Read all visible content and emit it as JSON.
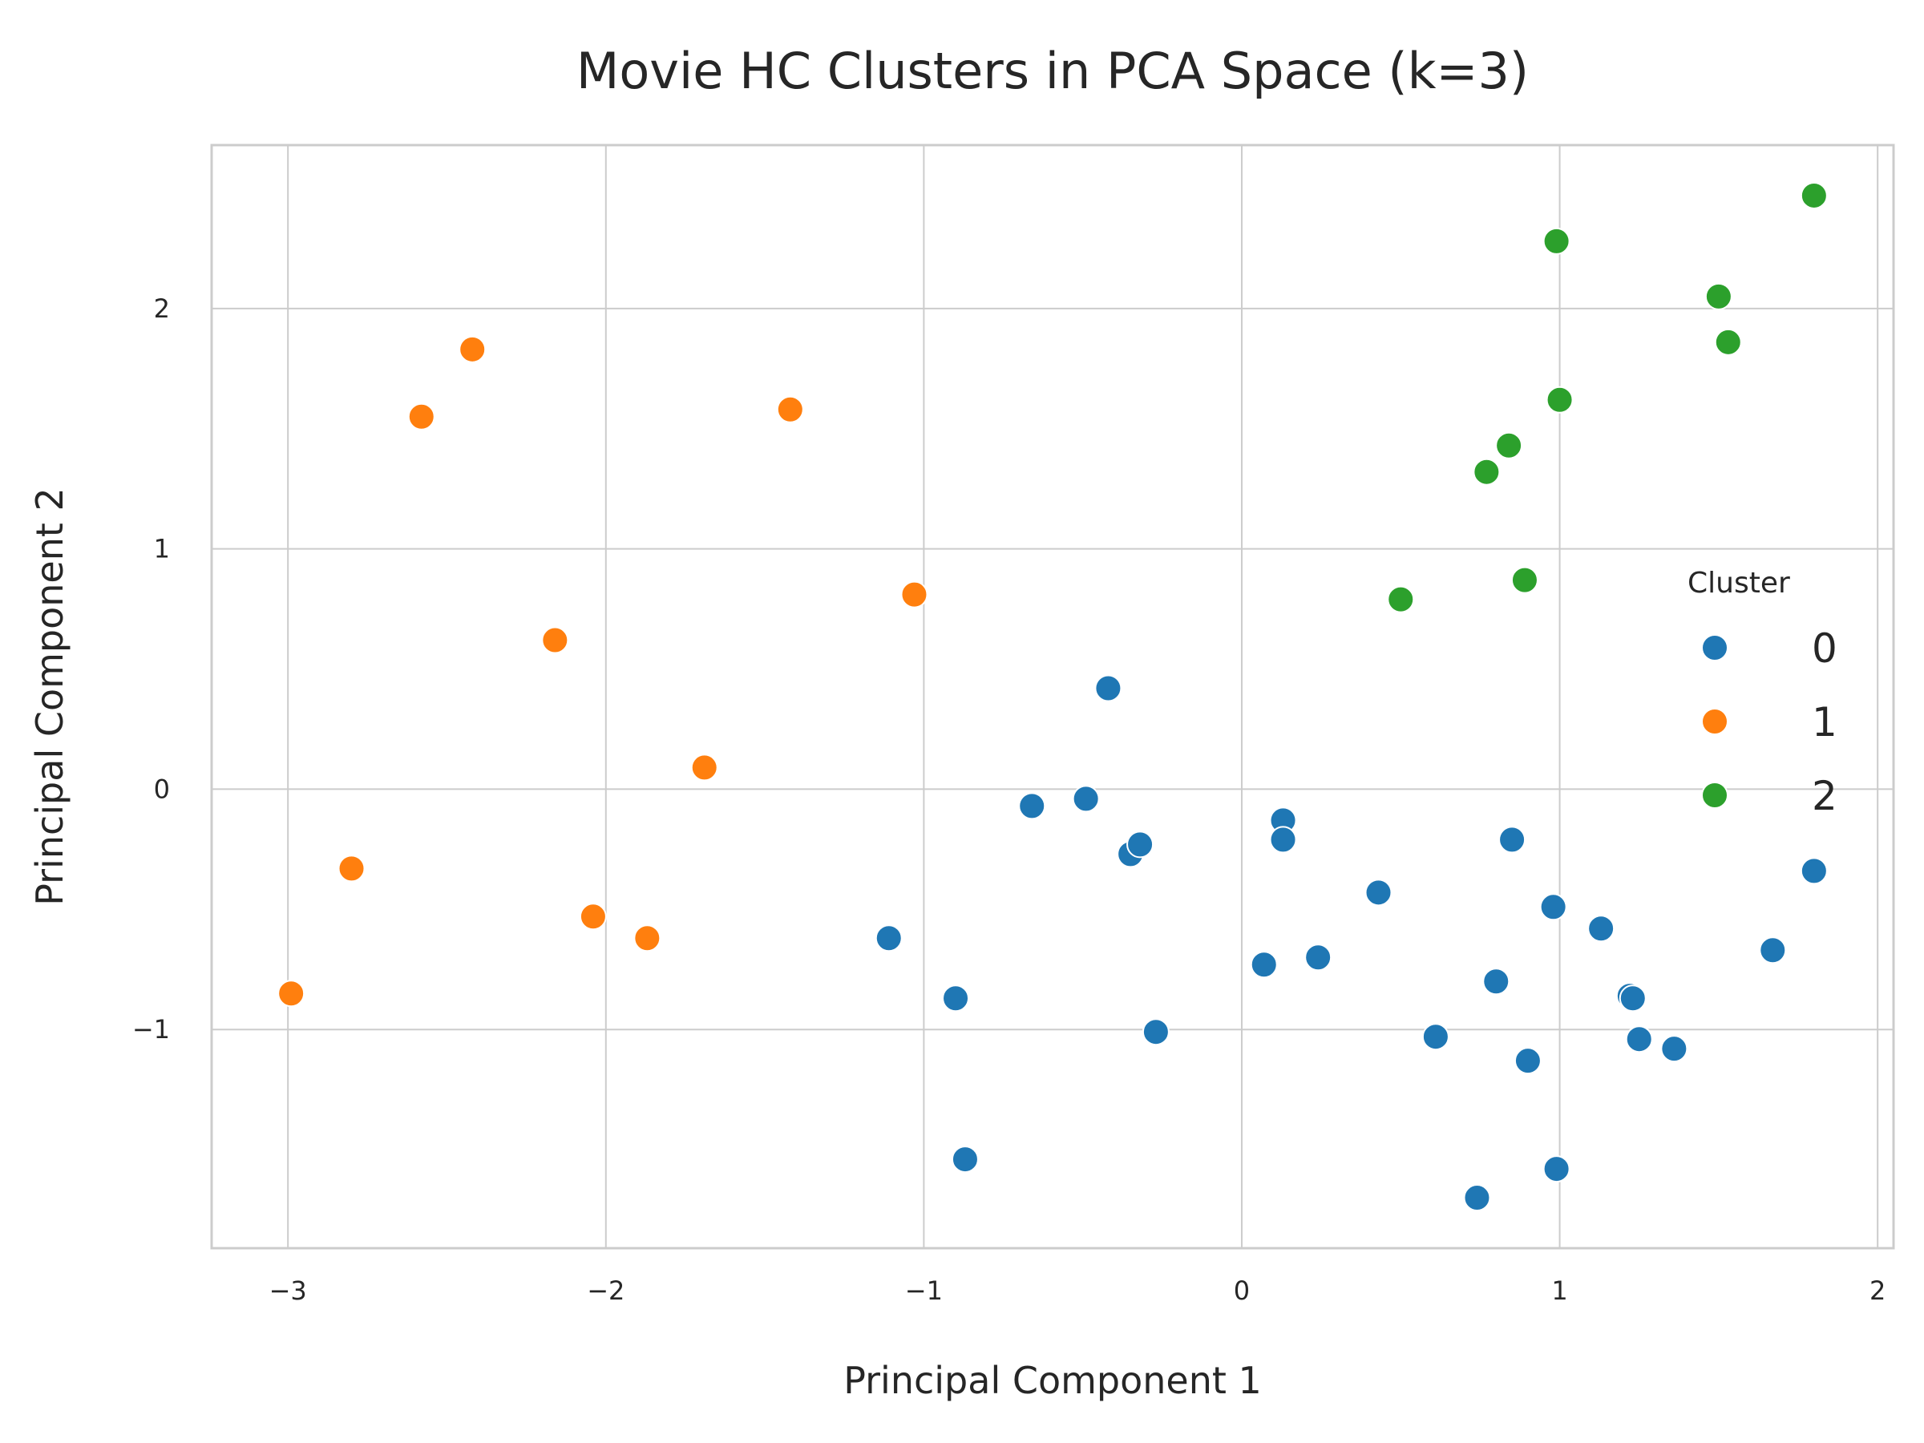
{
  "chart_data": {
    "type": "scatter",
    "title": "Movie HC Clusters in PCA Space (k=3)",
    "xlabel": "Principal Component 1",
    "ylabel": "Principal Component 2",
    "xlim": [
      -3.24,
      2.05
    ],
    "ylim": [
      -1.91,
      2.68
    ],
    "x_ticks": [
      -3,
      -2,
      -1,
      0,
      1,
      2
    ],
    "y_ticks": [
      -1,
      0,
      1,
      2
    ],
    "x_tick_labels": [
      "−3",
      "−2",
      "−1",
      "0",
      "1",
      "2"
    ],
    "y_tick_labels": [
      "−1",
      "0",
      "1",
      "2"
    ],
    "grid": true,
    "legend": {
      "title": "Cluster",
      "position": "right",
      "entries": [
        "0",
        "1",
        "2"
      ]
    },
    "series": [
      {
        "name": "0",
        "color": "#1f77b4",
        "points": [
          [
            -0.42,
            0.42
          ],
          [
            -0.49,
            -0.04
          ],
          [
            -0.66,
            -0.07
          ],
          [
            -0.35,
            -0.27
          ],
          [
            -0.32,
            -0.23
          ],
          [
            0.13,
            -0.13
          ],
          [
            0.13,
            -0.21
          ],
          [
            0.85,
            -0.21
          ],
          [
            0.43,
            -0.43
          ],
          [
            0.98,
            -0.49
          ],
          [
            1.13,
            -0.58
          ],
          [
            1.8,
            -0.34
          ],
          [
            1.67,
            -0.67
          ],
          [
            -1.11,
            -0.62
          ],
          [
            -0.9,
            -0.87
          ],
          [
            0.07,
            -0.73
          ],
          [
            0.24,
            -0.7
          ],
          [
            0.8,
            -0.8
          ],
          [
            1.22,
            -0.86
          ],
          [
            1.23,
            -0.87
          ],
          [
            -0.27,
            -1.01
          ],
          [
            0.61,
            -1.03
          ],
          [
            0.9,
            -1.13
          ],
          [
            1.25,
            -1.04
          ],
          [
            1.36,
            -1.08
          ],
          [
            -0.87,
            -1.54
          ],
          [
            0.74,
            -1.7
          ],
          [
            0.99,
            -1.58
          ]
        ]
      },
      {
        "name": "1",
        "color": "#ff7f0e",
        "points": [
          [
            -2.42,
            1.83
          ],
          [
            -2.58,
            1.55
          ],
          [
            -1.42,
            1.58
          ],
          [
            -1.03,
            0.81
          ],
          [
            -2.16,
            0.62
          ],
          [
            -1.69,
            0.09
          ],
          [
            -2.8,
            -0.33
          ],
          [
            -2.04,
            -0.53
          ],
          [
            -1.87,
            -0.62
          ],
          [
            -2.99,
            -0.85
          ]
        ]
      },
      {
        "name": "2",
        "color": "#2ca02c",
        "points": [
          [
            1.8,
            2.47
          ],
          [
            0.99,
            2.28
          ],
          [
            1.5,
            2.05
          ],
          [
            1.53,
            1.86
          ],
          [
            1.0,
            1.62
          ],
          [
            0.84,
            1.43
          ],
          [
            0.77,
            1.32
          ],
          [
            0.89,
            0.87
          ],
          [
            0.5,
            0.79
          ]
        ]
      }
    ]
  }
}
